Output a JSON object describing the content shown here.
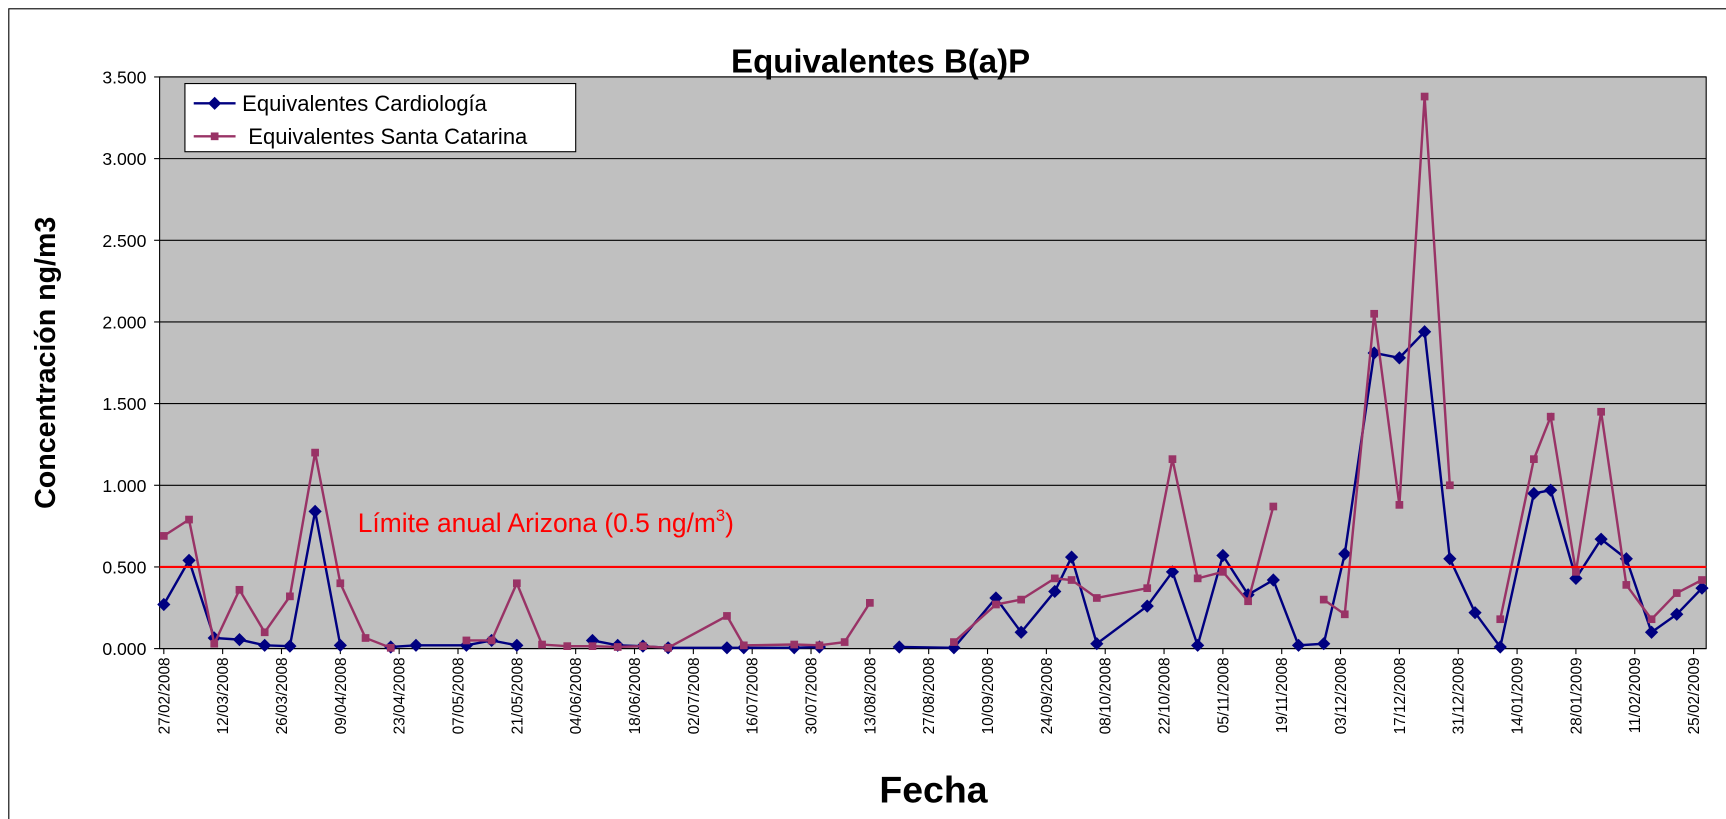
{
  "chart_data": {
    "type": "line",
    "title": "Equivalentes B(a)P",
    "x_label": "Fecha",
    "y_label": "Concentración ng/m3",
    "x": [
      "27/02/2008",
      "04/03/2008",
      "10/03/2008",
      "16/03/2008",
      "22/03/2008",
      "28/03/2008",
      "03/04/2008",
      "09/04/2008",
      "15/04/2008",
      "21/04/2008",
      "27/04/2008",
      "09/05/2008",
      "15/05/2008",
      "21/05/2008",
      "27/05/2008",
      "02/06/2008",
      "08/06/2008",
      "14/06/2008",
      "20/06/2008",
      "26/06/2008",
      "10/07/2008",
      "14/07/2008",
      "26/07/2008",
      "01/08/2008",
      "07/08/2008",
      "13/08/2008",
      "20/08/2008",
      "02/09/2008",
      "12/09/2008",
      "18/09/2008",
      "26/09/2008",
      "30/09/2008",
      "06/10/2008",
      "18/10/2008",
      "24/10/2008",
      "30/10/2008",
      "05/11/2008",
      "11/11/2008",
      "17/11/2008",
      "23/11/2008",
      "29/11/2008",
      "04/12/2008",
      "11/12/2008",
      "17/12/2008",
      "23/12/2008",
      "29/12/2008",
      "04/01/2009",
      "10/01/2009",
      "18/01/2009",
      "22/01/2009",
      "28/01/2009",
      "03/02/2009",
      "09/02/2009",
      "15/02/2009",
      "21/02/2009",
      "27/02/2009"
    ],
    "series": [
      {
        "name": "Equivalentes Cardiología",
        "color": "#000080",
        "marker": "diamond",
        "values": [
          0.27,
          0.54,
          0.065,
          0.055,
          0.02,
          0.015,
          0.84,
          0.02,
          null,
          0.01,
          0.02,
          0.02,
          0.05,
          0.02,
          null,
          null,
          0.05,
          0.02,
          0.015,
          0.005,
          0.005,
          0.005,
          0.005,
          0.01,
          null,
          null,
          0.01,
          0.005,
          0.31,
          0.1,
          0.35,
          0.56,
          0.03,
          0.26,
          0.47,
          0.02,
          0.57,
          0.33,
          0.42,
          0.02,
          0.03,
          0.58,
          1.81,
          1.78,
          1.94,
          0.55,
          0.22,
          0.01,
          0.95,
          0.97,
          0.43,
          0.67,
          0.55,
          0.1,
          0.21,
          0.37
        ]
      },
      {
        "name": " Equivalentes Santa Catarina",
        "color": "#993366",
        "marker": "square",
        "values": [
          0.69,
          0.79,
          0.03,
          0.36,
          0.1,
          0.32,
          1.2,
          0.4,
          0.065,
          0.005,
          null,
          0.05,
          0.05,
          0.4,
          0.025,
          0.015,
          0.015,
          0.01,
          0.015,
          0.005,
          0.2,
          0.02,
          0.025,
          0.02,
          0.04,
          0.28,
          null,
          0.04,
          0.27,
          0.3,
          0.43,
          0.42,
          0.31,
          0.37,
          1.16,
          0.43,
          0.47,
          0.29,
          0.87,
          null,
          0.3,
          0.21,
          2.05,
          0.88,
          3.38,
          1.0,
          null,
          0.18,
          1.16,
          1.42,
          0.47,
          1.45,
          0.39,
          0.18,
          0.34,
          0.42
        ]
      }
    ],
    "xlim": [
      "26/02/2008",
      "28/02/2009"
    ],
    "xticks": [
      "27/02/2008",
      "12/03/2008",
      "26/03/2008",
      "09/04/2008",
      "23/04/2008",
      "07/05/2008",
      "21/05/2008",
      "04/06/2008",
      "18/06/2008",
      "02/07/2008",
      "16/07/2008",
      "30/07/2008",
      "13/08/2008",
      "27/08/2008",
      "10/09/2008",
      "24/09/2008",
      "08/10/2008",
      "22/10/2008",
      "05/11/2008",
      "19/11/2008",
      "03/12/2008",
      "17/12/2008",
      "31/12/2008",
      "14/01/2009",
      "28/01/2009",
      "11/02/2009",
      "25/02/2009"
    ],
    "ylim": [
      0,
      3.5
    ],
    "yticks": [
      {
        "value": 0,
        "label": "0.000"
      },
      {
        "value": 0.5,
        "label": "0.500"
      },
      {
        "value": 1,
        "label": "1.000"
      },
      {
        "value": 1.5,
        "label": "1.500"
      },
      {
        "value": 2,
        "label": "2.000"
      },
      {
        "value": 2.5,
        "label": "2.500"
      },
      {
        "value": 3,
        "label": "3.000"
      },
      {
        "value": 3.5,
        "label": "3.500"
      }
    ],
    "grid": true,
    "plot_background": "#c0c0c0",
    "legend": "top-left",
    "reference_line": {
      "value": 0.5,
      "color": "#ff0000",
      "label": "Límite anual Arizona (0.5 ng/m",
      "label_superscript": "3",
      "label_suffix": ")"
    }
  }
}
